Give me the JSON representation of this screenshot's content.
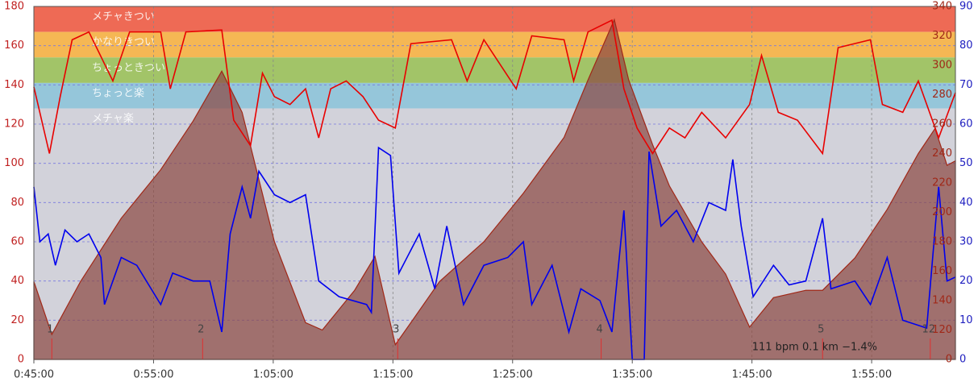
{
  "chart_data": {
    "type": "line",
    "xlim": [
      45,
      122
    ],
    "xticks": [
      {
        "value": 45,
        "label": "0:45:00"
      },
      {
        "value": 55,
        "label": "0:55:00"
      },
      {
        "value": 65,
        "label": "1:05:00"
      },
      {
        "value": 75,
        "label": "1:15:00"
      },
      {
        "value": 85,
        "label": "1:25:00"
      },
      {
        "value": 95,
        "label": "1:35:00"
      },
      {
        "value": 105,
        "label": "1:45:00"
      },
      {
        "value": 115,
        "label": "1:55:00"
      }
    ],
    "ylim": [
      0,
      180
    ],
    "yticks": [
      0,
      20,
      40,
      60,
      80,
      100,
      120,
      140,
      160,
      180
    ],
    "y2lim": [
      100,
      340
    ],
    "y2ticks": [
      {
        "value": 100,
        "label": "0"
      },
      120,
      140,
      160,
      180,
      200,
      220,
      240,
      260,
      280,
      300,
      320,
      340
    ],
    "y3lim": [
      0,
      90
    ],
    "y3ticks": [
      0,
      10,
      20,
      30,
      40,
      50,
      60,
      70,
      80,
      90
    ],
    "grid": true,
    "zones": [
      {
        "label": "メチャきつい",
        "from": 167,
        "to": 180,
        "color": "#ee6a55"
      },
      {
        "label": "かなりきつい",
        "from": 154,
        "to": 167,
        "color": "#f5b754"
      },
      {
        "label": "ちょっときつい",
        "from": 141,
        "to": 154,
        "color": "#a2c468"
      },
      {
        "label": "ちょっと楽",
        "from": 128,
        "to": 141,
        "color": "#95c6da"
      },
      {
        "label": "メチャ楽",
        "from": 0,
        "to": 128,
        "color": "#d2d2da"
      }
    ],
    "elevation": {
      "axis": "y2",
      "color": "#8c4a44",
      "x": [
        45,
        46.5,
        48.9,
        52.3,
        55.6,
        58.3,
        60.7,
        62.4,
        65.1,
        67.7,
        69.1,
        71.8,
        73.5,
        75.2,
        76.5,
        78.9,
        82.6,
        85.9,
        89.3,
        91.3,
        93.5,
        94.7,
        96.7,
        98.1,
        100.8,
        102.8,
        104.8,
        106.8,
        109.5,
        110.9,
        113.6,
        116.3,
        118.9,
        120.3,
        121.3,
        122
      ],
      "values": [
        153,
        117,
        153,
        196,
        229,
        262,
        296,
        268,
        180,
        125,
        120,
        147,
        170,
        110,
        125,
        153,
        180,
        213,
        251,
        290,
        331,
        290,
        246,
        218,
        180,
        158,
        122,
        142,
        147,
        147,
        169,
        202,
        240,
        257,
        232,
        235
      ]
    },
    "series": [
      {
        "axis": "y",
        "color": "#e80000",
        "x": [
          45,
          46.3,
          47.2,
          48.2,
          49.6,
          51.6,
          53,
          55.6,
          56.4,
          57.7,
          60.7,
          61.7,
          63.1,
          64.1,
          65.1,
          66.4,
          67.7,
          68.8,
          69.8,
          71.1,
          72.5,
          73.8,
          75.2,
          76.5,
          79.9,
          81.2,
          82.6,
          85.3,
          86.6,
          89.3,
          90.1,
          91.3,
          93.3,
          94.3,
          95.4,
          96.7,
          98.1,
          99.4,
          100.8,
          102.8,
          104.8,
          105.8,
          107.2,
          108.8,
          110.9,
          112.2,
          114.9,
          115.9,
          117.6,
          118.9,
          120.6,
          122
        ],
        "values": [
          139,
          105,
          134,
          163,
          167,
          142,
          167,
          167,
          138,
          167,
          168,
          122,
          109,
          146,
          134,
          130,
          138,
          113,
          138,
          142,
          134,
          122,
          118,
          161,
          163,
          142,
          163,
          138,
          165,
          163,
          142,
          167,
          173,
          138,
          118,
          105,
          118,
          113,
          126,
          113,
          130,
          155,
          126,
          122,
          105,
          159,
          163,
          130,
          126,
          142,
          113,
          136
        ]
      },
      {
        "axis": "y3",
        "color": "#0000ee",
        "x": [
          45,
          45.5,
          46.2,
          46.8,
          47.6,
          48.6,
          49.6,
          50.6,
          50.9,
          52.3,
          53.6,
          55.6,
          56.6,
          58.3,
          59.7,
          60.7,
          61.4,
          62.4,
          63.1,
          63.8,
          65.1,
          66.4,
          67.7,
          68.8,
          70.5,
          72.8,
          73.2,
          73.8,
          74.8,
          75.5,
          77.2,
          78.5,
          79.5,
          80.9,
          82.6,
          84.6,
          85.9,
          86.6,
          88.3,
          89.7,
          90.7,
          92.3,
          93.3,
          94.3,
          95,
          96,
          96.4,
          97.4,
          98.7,
          100.1,
          101.4,
          102.8,
          103.4,
          104.1,
          105.1,
          106.8,
          108.1,
          109.5,
          110.9,
          111.6,
          113.6,
          114.9,
          116.3,
          117.6,
          119.6,
          120.6,
          121.3,
          122
        ],
        "values": [
          44,
          30,
          32,
          24,
          33,
          30,
          32,
          26,
          14,
          26,
          24,
          14,
          22,
          20,
          20,
          7,
          32,
          44,
          36,
          48,
          42,
          40,
          42,
          20,
          16,
          14,
          12,
          54,
          52,
          22,
          32,
          18,
          34,
          14,
          24,
          26,
          30,
          14,
          24,
          7,
          18,
          15,
          7,
          38,
          0,
          0,
          53,
          34,
          38,
          30,
          40,
          38,
          51,
          34,
          16,
          24,
          19,
          20,
          36,
          18,
          20,
          14,
          26,
          10,
          8,
          44,
          20,
          21
        ]
      }
    ],
    "laps": {
      "x": [
        46.5,
        59.1,
        75.4,
        92.4,
        110.9,
        119.9
      ],
      "labels": [
        "1",
        "2",
        "3",
        "4",
        "5",
        "12"
      ]
    },
    "annotation": "111 bpm 0.1 km −1.4%"
  }
}
